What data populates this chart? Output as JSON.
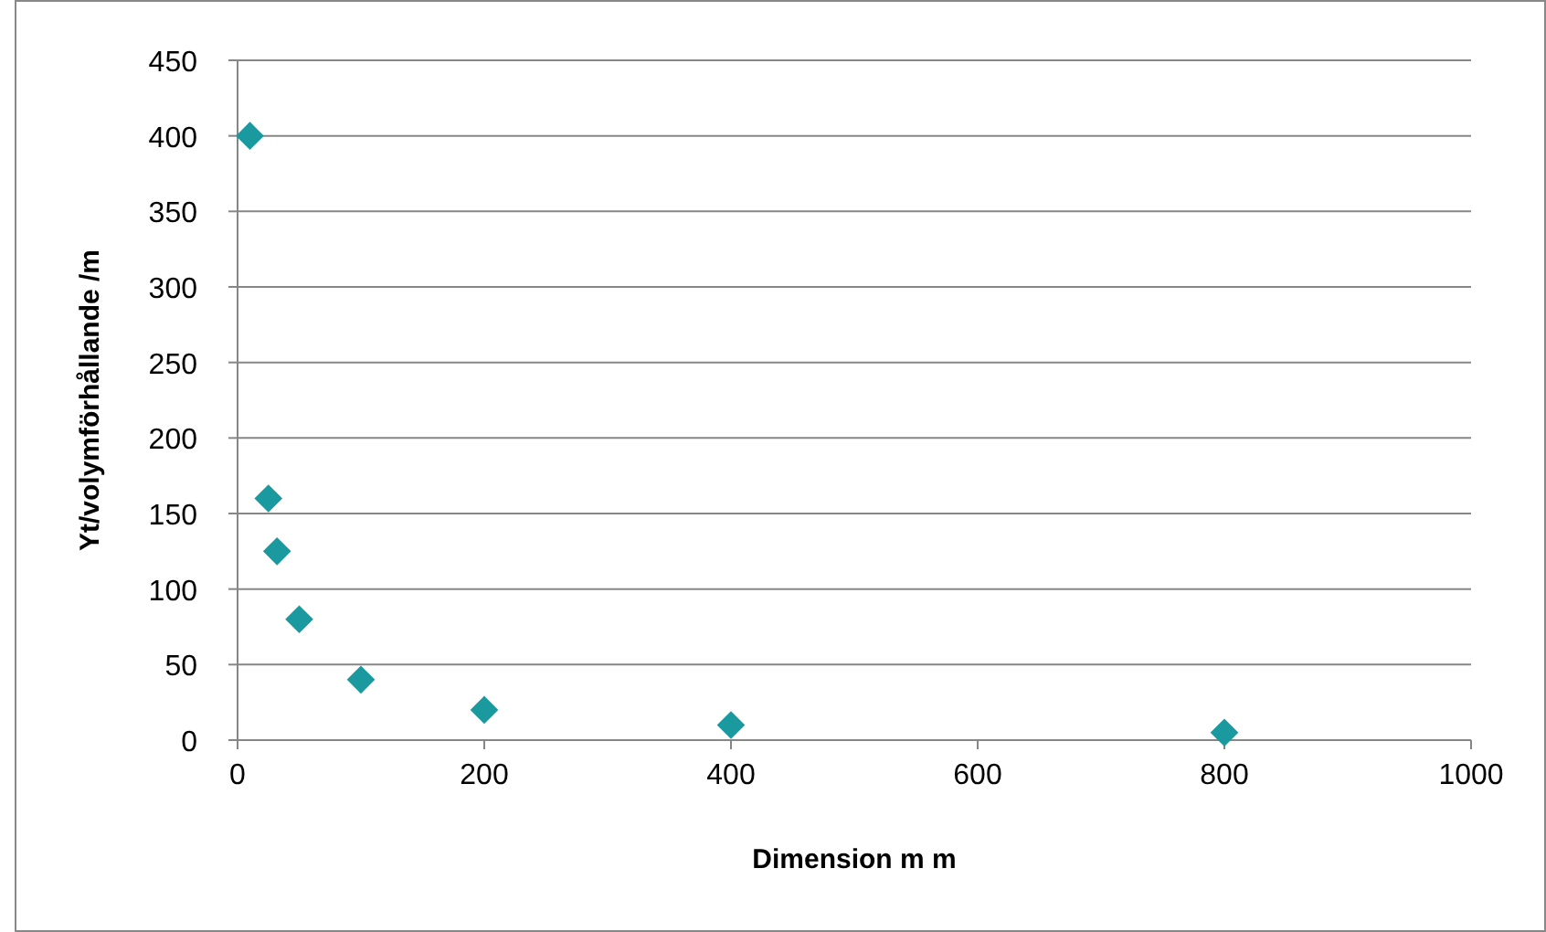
{
  "chart_data": {
    "type": "scatter",
    "xlabel": "Dimension m m",
    "ylabel": "Yt/volymförhållande /m",
    "x": [
      10,
      25,
      32,
      50,
      100,
      200,
      400,
      800
    ],
    "series": [
      {
        "color": "#1a9a9f",
        "values": [
          400,
          160,
          125,
          80,
          40,
          20,
          10,
          5
        ]
      }
    ],
    "xlim": [
      0,
      1000
    ],
    "xticks": [
      0,
      200,
      400,
      600,
      800,
      1000
    ],
    "ylim": [
      0,
      450
    ],
    "yticks": [
      0,
      50,
      100,
      150,
      200,
      250,
      300,
      350,
      400,
      450
    ],
    "grid": "y",
    "marker": "diamond"
  }
}
